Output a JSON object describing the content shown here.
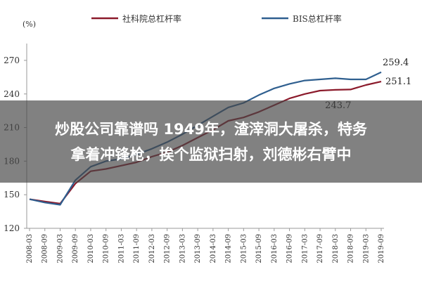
{
  "chart_data": {
    "type": "line",
    "title": "",
    "ylabel": "(%)",
    "xlabel": "",
    "ylim": [
      120,
      280
    ],
    "yticks": [
      120,
      150,
      180,
      210,
      240,
      270
    ],
    "x": [
      "2008-03",
      "2008-09",
      "2009-03",
      "2009-09",
      "2010-03",
      "2010-09",
      "2011-03",
      "2011-09",
      "2012-03",
      "2012-09",
      "2013-03",
      "2013-09",
      "2014-03",
      "2014-09",
      "2015-03",
      "2015-09",
      "2016-03",
      "2016-09",
      "2017-03",
      "2017-09",
      "2018-03",
      "2018-09",
      "2019-03",
      "2019-09"
    ],
    "legend_position": "top",
    "grid": false,
    "series": [
      {
        "name": "社科院总杠杆率",
        "color": "#8b1a2b",
        "values": [
          146,
          144,
          142,
          160,
          171,
          173,
          176,
          179,
          184,
          188,
          194,
          201,
          208,
          216,
          219,
          224,
          230,
          236,
          240,
          243,
          243.7,
          244,
          248,
          251.1
        ]
      },
      {
        "name": "BIS总杠杆率",
        "color": "#2f5f8f",
        "values": [
          146,
          143,
          141,
          163,
          175,
          180,
          182,
          186,
          191,
          197,
          204,
          212,
          220,
          228,
          232,
          239,
          245,
          249,
          252,
          253,
          254,
          253,
          253,
          259.4
        ]
      }
    ],
    "annotations": [
      {
        "text": "259.4",
        "series": 1,
        "index": 23
      },
      {
        "text": "251.1",
        "series": 0,
        "index": 23
      },
      {
        "text": "243.7",
        "series": 0,
        "index": 20
      }
    ]
  },
  "overlay": {
    "line1": "炒股公司靠谱吗 1949年，渣滓洞大屠杀，特务",
    "line2": "拿着冲锋枪，挨个监狱扫射，刘德彬右臂中"
  }
}
